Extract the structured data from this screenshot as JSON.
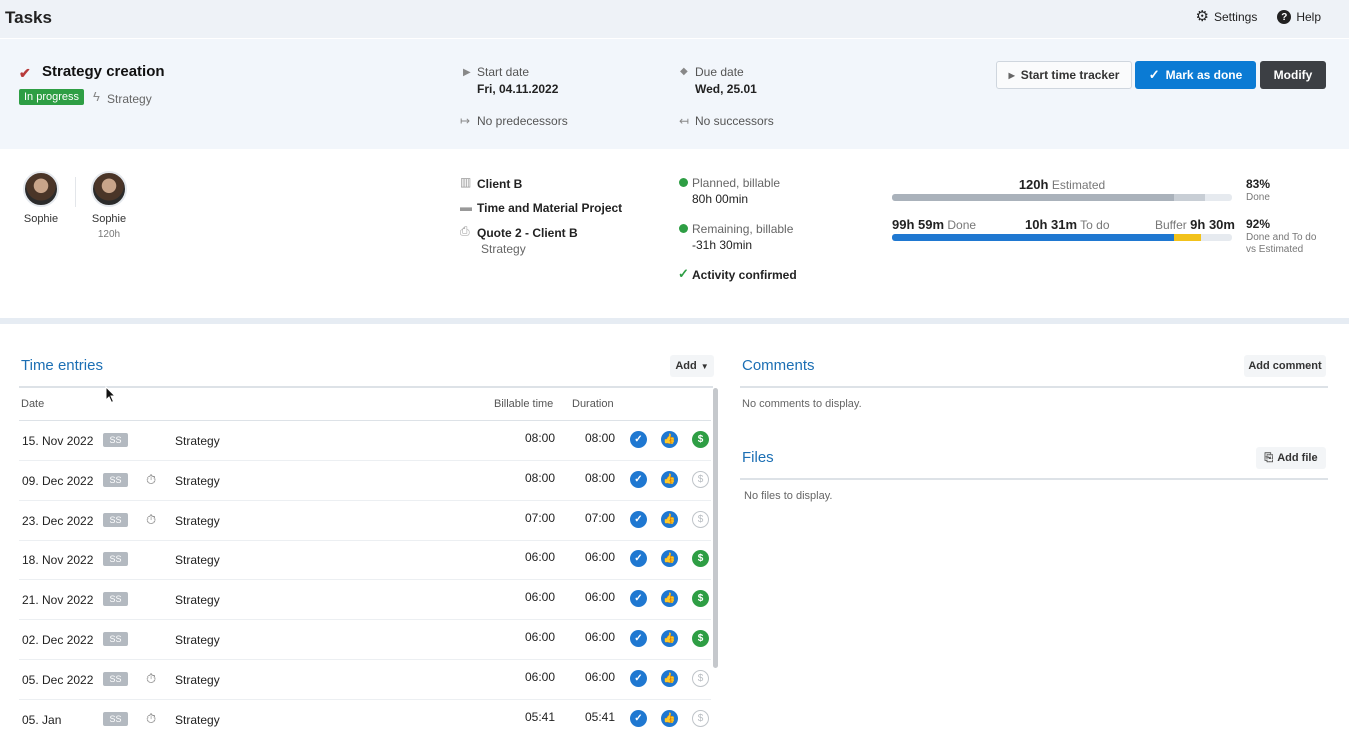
{
  "app": {
    "title": "Tasks"
  },
  "nav": {
    "settings": "Settings",
    "help": "Help",
    "help_glyph": "?"
  },
  "task": {
    "title": "Strategy creation",
    "status": "In progress",
    "service_type": "Strategy",
    "start_label": "Start date",
    "start_value": "Fri, 04.11.2022",
    "due_label": "Due date",
    "due_value": "Wed, 25.01",
    "predecessors": "No predecessors",
    "successors": "No successors"
  },
  "actions": {
    "tracker": "Start time tracker",
    "done": "Mark as done",
    "modify": "Modify"
  },
  "assignees": [
    {
      "name": "Sophie",
      "hours": ""
    },
    {
      "name": "Sophie",
      "hours": "120h"
    }
  ],
  "project": {
    "client": "Client B",
    "project": "Time and Material Project",
    "quote": "Quote 2 - Client B",
    "quote_service": "Strategy"
  },
  "billing": {
    "planned_label": "Planned, billable",
    "planned_value": "80h 00min",
    "remaining_label": "Remaining, billable",
    "remaining_value": "-31h 30min",
    "activity": "Activity confirmed"
  },
  "progress": {
    "estimated_value": "120h",
    "estimated_label": "Estimated",
    "done_value": "99h 59m",
    "done_label": "Done",
    "todo_value": "10h 31m",
    "todo_label": "To do",
    "buffer_label": "Buffer",
    "buffer_value": "9h 30m",
    "pct_done": "83%",
    "pct_done_label": "Done",
    "pct_done_todo": "92%",
    "pct_done_todo_label_1": "Done and To do",
    "pct_done_todo_label_2": "vs Estimated",
    "estimated_fraction_done": 0.83,
    "estimated_fraction_todo": 0.09,
    "actual_fraction_done": 0.83,
    "actual_fraction_buffer": 0.08,
    "color_done": "#1f78d1",
    "color_buffer": "#f2c21b",
    "color_estimated": "#aab2bb"
  },
  "time_entries": {
    "title": "Time entries",
    "add": "Add",
    "headers": {
      "date": "Date",
      "billable": "Billable time",
      "duration": "Duration"
    },
    "badge": "SS",
    "rows": [
      {
        "date": "15. Nov 2022",
        "timer": false,
        "service": "Strategy",
        "billable": "08:00",
        "duration": "08:00",
        "billed": true
      },
      {
        "date": "09. Dec 2022",
        "timer": true,
        "service": "Strategy",
        "billable": "08:00",
        "duration": "08:00",
        "billed": false
      },
      {
        "date": "23. Dec 2022",
        "timer": true,
        "service": "Strategy",
        "billable": "07:00",
        "duration": "07:00",
        "billed": false
      },
      {
        "date": "18. Nov 2022",
        "timer": false,
        "service": "Strategy",
        "billable": "06:00",
        "duration": "06:00",
        "billed": true
      },
      {
        "date": "21. Nov 2022",
        "timer": false,
        "service": "Strategy",
        "billable": "06:00",
        "duration": "06:00",
        "billed": true
      },
      {
        "date": "02. Dec 2022",
        "timer": false,
        "service": "Strategy",
        "billable": "06:00",
        "duration": "06:00",
        "billed": true
      },
      {
        "date": "05. Dec 2022",
        "timer": true,
        "service": "Strategy",
        "billable": "06:00",
        "duration": "06:00",
        "billed": false
      },
      {
        "date": "05. Jan",
        "timer": true,
        "service": "Strategy",
        "billable": "05:41",
        "duration": "05:41",
        "billed": false
      }
    ]
  },
  "comments": {
    "title": "Comments",
    "add": "Add comment",
    "empty": "No comments to display."
  },
  "files": {
    "title": "Files",
    "add": "Add file",
    "empty": "No files to display."
  }
}
